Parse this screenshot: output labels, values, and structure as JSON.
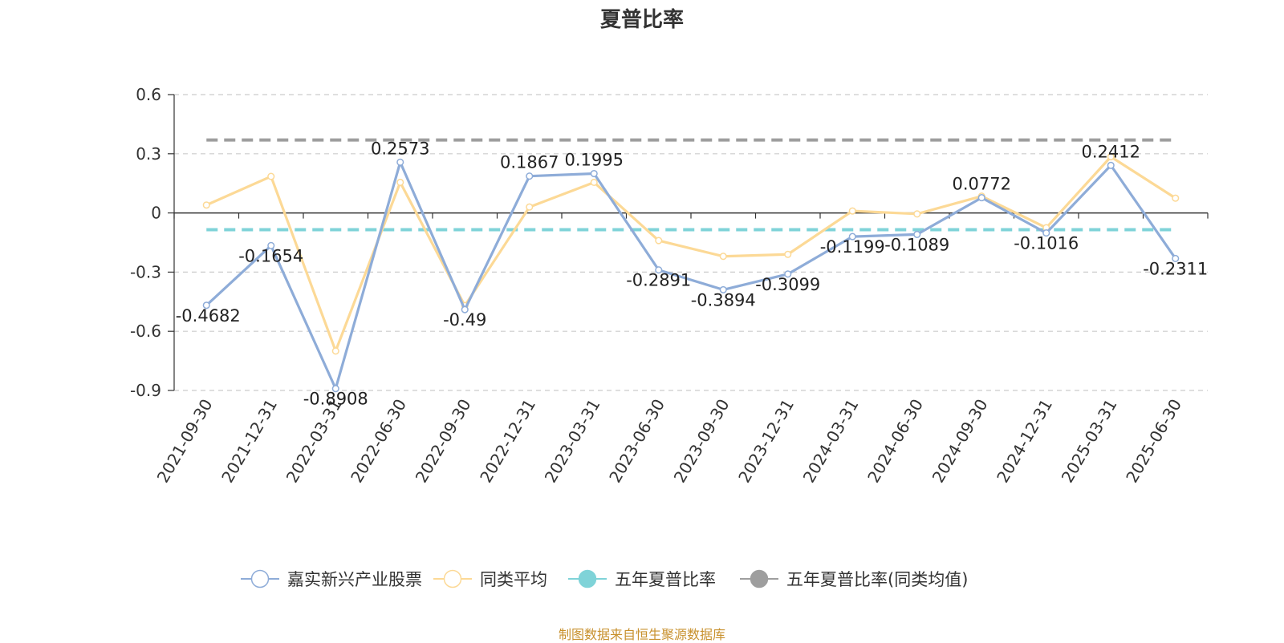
{
  "chart_data": {
    "type": "line",
    "title": "夏普比率",
    "source": "制图数据来自恒生聚源数据库",
    "categories": [
      "2021-09-30",
      "2021-12-31",
      "2022-03-31",
      "2022-06-30",
      "2022-09-30",
      "2022-12-31",
      "2023-03-31",
      "2023-06-30",
      "2023-09-30",
      "2023-12-31",
      "2024-03-31",
      "2024-06-30",
      "2024-09-30",
      "2024-12-31",
      "2025-03-31",
      "2025-06-30"
    ],
    "yticks": [
      0.6,
      0.3,
      0,
      -0.3,
      -0.6,
      -0.9
    ],
    "ytick_labels": [
      "0.6",
      "0.3",
      "0",
      "-0.3",
      "-0.6",
      "-0.9"
    ],
    "ylim": [
      -0.9,
      0.6
    ],
    "grid": true,
    "legend_position": "bottom",
    "series": [
      {
        "name": "嘉实新兴产业股票",
        "color": "#8eacd8",
        "values": [
          -0.4682,
          -0.1654,
          -0.8908,
          0.2573,
          -0.49,
          0.1867,
          0.1995,
          -0.2891,
          -0.3894,
          -0.3099,
          -0.1199,
          -0.1089,
          0.0772,
          -0.1016,
          0.2412,
          -0.2311
        ],
        "labels": [
          "-0.4682",
          "-0.1654",
          "-0.8908",
          "0.2573",
          "-0.49",
          "0.1867",
          "0.1995",
          "-0.2891",
          "-0.3894",
          "-0.3099",
          "-0.1199",
          "-0.1089",
          "0.0772",
          "-0.1016",
          "0.2412",
          "-0.2311"
        ]
      },
      {
        "name": "同类平均",
        "color": "#fcd996",
        "values": [
          0.04,
          0.185,
          -0.7,
          0.155,
          -0.47,
          0.03,
          0.155,
          -0.14,
          -0.22,
          -0.21,
          0.01,
          -0.005,
          0.085,
          -0.075,
          0.285,
          0.075
        ]
      }
    ],
    "reference_lines": [
      {
        "name": "五年夏普比率",
        "color": "#7fd3d8",
        "value": -0.085
      },
      {
        "name": "五年夏普比率(同类均值)",
        "color": "#9e9e9e",
        "value": 0.37
      }
    ]
  }
}
